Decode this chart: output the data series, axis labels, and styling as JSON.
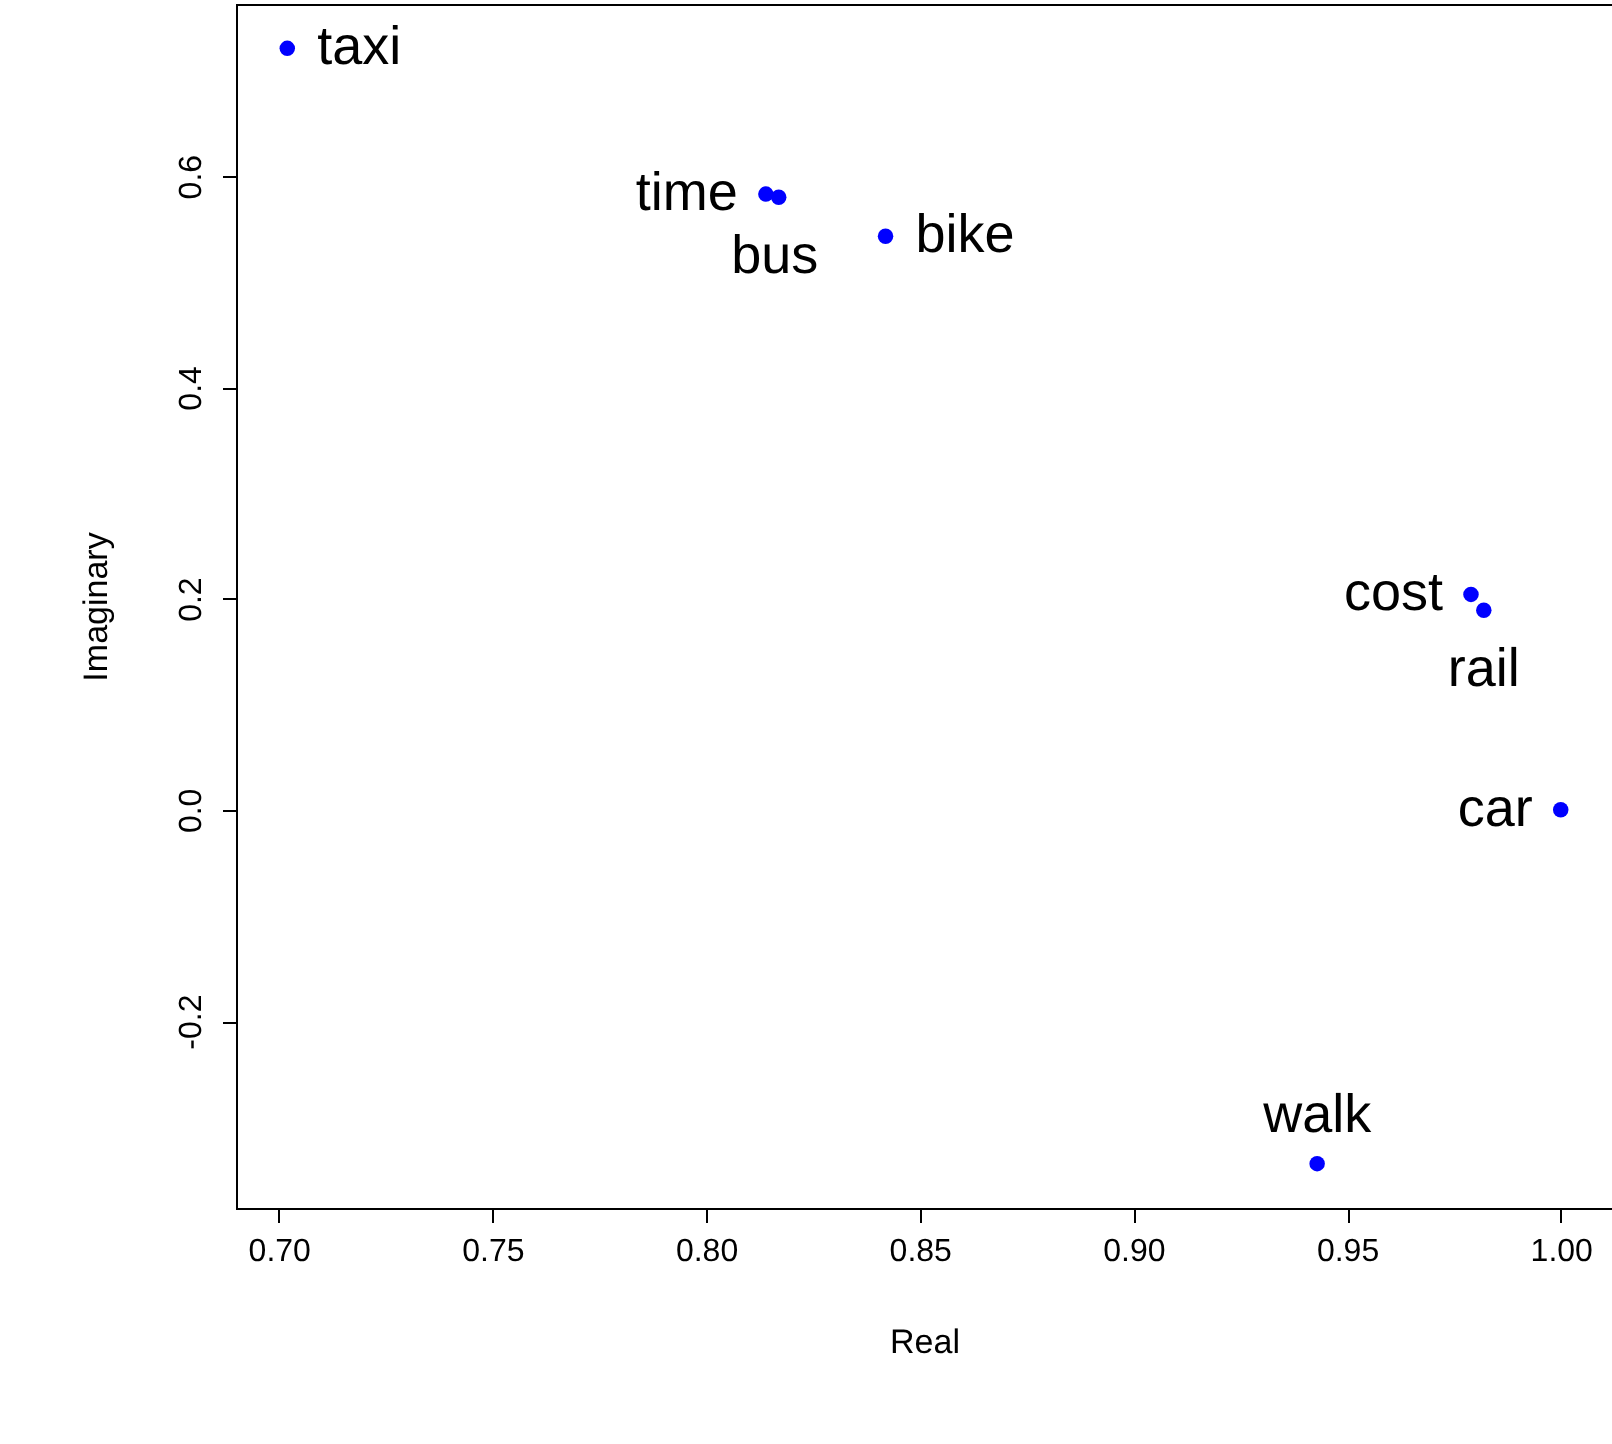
{
  "chart_data": {
    "type": "scatter",
    "xlabel": "Real",
    "ylabel": "Imaginary",
    "x": [
      0.702,
      0.814,
      0.817,
      0.842,
      0.979,
      0.982,
      1.0,
      0.943
    ],
    "series": [
      {
        "color": "#0000ff",
        "values": [
          0.721,
          0.583,
          0.58,
          0.543,
          0.204,
          0.189,
          0.0,
          -0.335
        ]
      }
    ],
    "annotations": [
      {
        "text": "taxi",
        "x": 0.702,
        "y": 0.721
      },
      {
        "text": "time",
        "x": 0.814,
        "y": 0.583
      },
      {
        "text": "bus",
        "x": 0.817,
        "y": 0.58
      },
      {
        "text": "bike",
        "x": 0.842,
        "y": 0.543
      },
      {
        "text": "cost",
        "x": 0.979,
        "y": 0.204
      },
      {
        "text": "rail",
        "x": 0.982,
        "y": 0.189
      },
      {
        "text": "car",
        "x": 1.0,
        "y": 0.0
      },
      {
        "text": "walk",
        "x": 0.943,
        "y": -0.335
      }
    ],
    "xlim": [
      0.69,
      1.012
    ],
    "ylim": [
      -0.377,
      0.763
    ],
    "xticks": [
      {
        "value": 0.7,
        "label": "0.70"
      },
      {
        "value": 0.75,
        "label": "0.75"
      },
      {
        "value": 0.8,
        "label": "0.80"
      },
      {
        "value": 0.85,
        "label": "0.85"
      },
      {
        "value": 0.9,
        "label": "0.90"
      },
      {
        "value": 0.95,
        "label": "0.95"
      },
      {
        "value": 1.0,
        "label": "1.00"
      }
    ],
    "yticks": [
      {
        "value": -0.2,
        "label": "-0.2"
      },
      {
        "value": 0.0,
        "label": "0.0"
      },
      {
        "value": 0.2,
        "label": "0.2"
      },
      {
        "value": 0.4,
        "label": "0.4"
      },
      {
        "value": 0.6,
        "label": "0.6"
      }
    ],
    "grid": false,
    "marker": "circle"
  }
}
